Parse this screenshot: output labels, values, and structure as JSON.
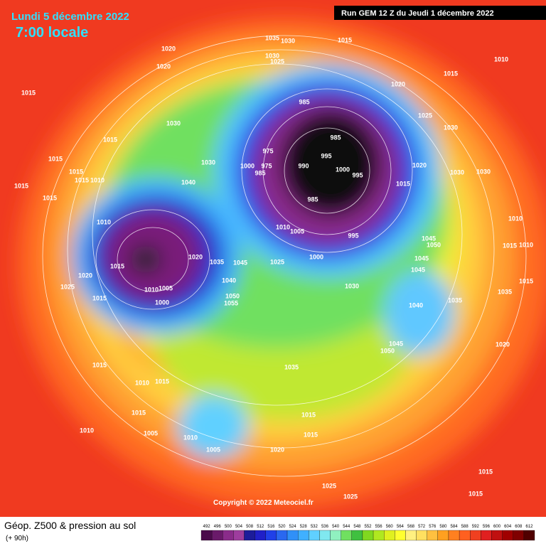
{
  "header": {
    "date": "Lundi 5 décembre 2022",
    "time": "7:00 locale",
    "run": "Run GEM 12 Z du Jeudi 1 décembre 2022"
  },
  "map": {
    "isobar_labels": [
      1020,
      1020,
      1015,
      1030,
      1015,
      1015,
      1015,
      1015,
      1010,
      1015,
      1015,
      1040,
      1030,
      1010,
      1015,
      1020,
      1025,
      1015,
      1020,
      1035,
      1045,
      1040,
      1050,
      1055,
      1010,
      1005,
      1000,
      1015,
      1010,
      1015,
      1015,
      1010,
      1005,
      1010,
      1005,
      1020,
      1015,
      1015,
      1035,
      1025,
      1025,
      1035,
      1030,
      1030,
      1025,
      1015,
      1010,
      1015,
      1020,
      1025,
      1030,
      985,
      985,
      995,
      990,
      1000,
      995,
      985,
      1000,
      975,
      975,
      985,
      1010,
      1005,
      995,
      1000,
      1025,
      1030,
      1020,
      1015,
      1030,
      1030,
      1010,
      1045,
      1050,
      1015,
      1010,
      1045,
      1045,
      1035,
      1015,
      1035,
      1040,
      1045,
      1050,
      1020,
      1015,
      1015
    ]
  },
  "copyright": "Copyright © 2022 Meteociel.fr",
  "legend": {
    "title": "Géop. Z500 & pression au sol",
    "lead": "(+ 90h)",
    "scale": [
      492,
      496,
      500,
      504,
      508,
      512,
      516,
      520,
      524,
      528,
      532,
      536,
      540,
      544,
      548,
      552,
      556,
      560,
      564,
      568,
      572,
      576,
      580,
      584,
      588,
      592,
      596,
      600,
      604,
      608,
      612
    ],
    "colors": [
      "#4b0b4b",
      "#6a1a6a",
      "#8a2c8a",
      "#9e3d9e",
      "#1c1c9a",
      "#2020c8",
      "#2040e8",
      "#2a68f0",
      "#3090f8",
      "#40b0ff",
      "#60d0ff",
      "#80e8f0",
      "#90f0c0",
      "#70e060",
      "#40c040",
      "#80d820",
      "#b0e820",
      "#e0f020",
      "#ffff30",
      "#fff080",
      "#ffe060",
      "#ffc040",
      "#ffa020",
      "#ff8020",
      "#ff6020",
      "#f04020",
      "#e02020",
      "#c01010",
      "#a00000",
      "#800000",
      "#500000"
    ]
  }
}
